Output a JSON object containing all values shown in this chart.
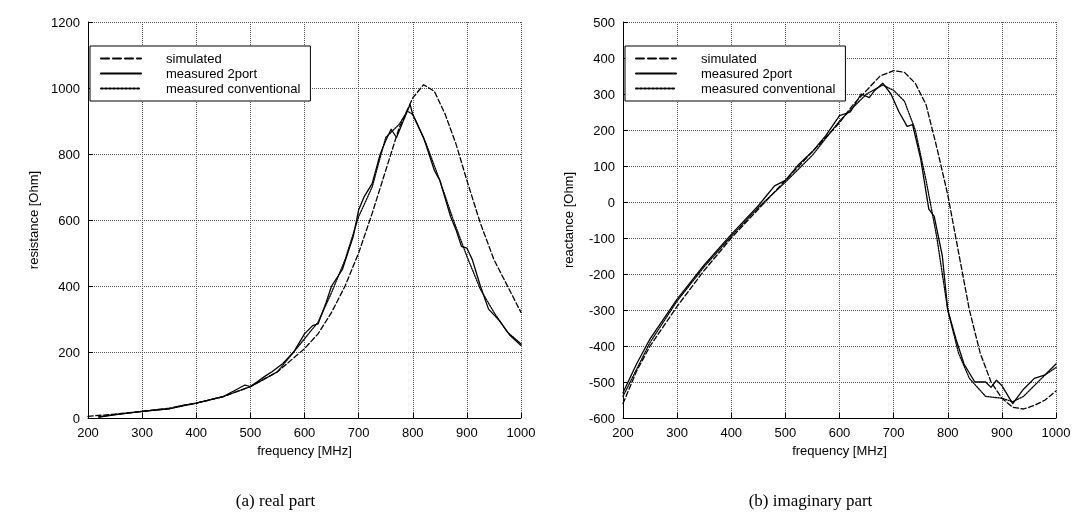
{
  "chart_data": [
    {
      "type": "line",
      "title": "(a) real part",
      "xlabel": "frequency [MHz]",
      "ylabel": "resistance [Ohm]",
      "xlim": [
        200,
        1000
      ],
      "xticks": [
        200,
        300,
        400,
        500,
        600,
        700,
        800,
        900,
        1000
      ],
      "ylim": [
        0,
        1200
      ],
      "yticks": [
        0,
        200,
        400,
        600,
        800,
        1000,
        1200
      ],
      "grid": true,
      "legend": "top left",
      "marker": "none",
      "series": [
        {
          "name": "simulated",
          "color": "#000000",
          "line_style": "dashed",
          "x": [
            200,
            250,
            300,
            350,
            400,
            450,
            500,
            550,
            600,
            625,
            650,
            675,
            700,
            725,
            750,
            775,
            800,
            820,
            840,
            860,
            880,
            900,
            925,
            950,
            975,
            1000
          ],
          "values": [
            5,
            12,
            20,
            30,
            45,
            65,
            95,
            140,
            210,
            255,
            320,
            400,
            500,
            620,
            750,
            880,
            970,
            1010,
            990,
            920,
            830,
            720,
            590,
            480,
            400,
            320
          ]
        },
        {
          "name": "measured 2port",
          "color": "#000000",
          "line_style": "solid",
          "x": [
            220,
            250,
            300,
            350,
            370,
            400,
            450,
            490,
            500,
            530,
            540,
            560,
            580,
            600,
            615,
            625,
            640,
            650,
            660,
            670,
            690,
            700,
            710,
            725,
            740,
            750,
            760,
            770,
            780,
            795,
            800,
            820,
            840,
            850,
            870,
            880,
            890,
            900,
            910,
            925,
            940,
            960,
            980,
            1000
          ],
          "values": [
            3,
            10,
            20,
            28,
            37,
            45,
            65,
            100,
            95,
            130,
            140,
            165,
            200,
            255,
            280,
            285,
            350,
            400,
            425,
            450,
            550,
            630,
            670,
            710,
            800,
            840,
            875,
            850,
            890,
            950,
            920,
            850,
            750,
            720,
            610,
            570,
            520,
            515,
            480,
            400,
            330,
            295,
            250,
            220
          ]
        },
        {
          "name": "measured conventional",
          "color": "#000000",
          "line_style": "dotted",
          "x": [
            220,
            250,
            300,
            350,
            400,
            450,
            500,
            550,
            600,
            625,
            650,
            675,
            700,
            725,
            750,
            775,
            790,
            800,
            825,
            850,
            875,
            900,
            925,
            950,
            975,
            1000
          ],
          "values": [
            3,
            10,
            20,
            28,
            45,
            65,
            95,
            140,
            240,
            290,
            380,
            480,
            610,
            700,
            850,
            890,
            930,
            920,
            830,
            720,
            600,
            490,
            390,
            320,
            260,
            225
          ]
        }
      ]
    },
    {
      "type": "line",
      "title": "(b) imaginary part",
      "xlabel": "frequency [MHz]",
      "ylabel": "reactance [Ohm]",
      "xlim": [
        200,
        1000
      ],
      "xticks": [
        200,
        300,
        400,
        500,
        600,
        700,
        800,
        900,
        1000
      ],
      "ylim": [
        -600,
        500
      ],
      "yticks": [
        -600,
        -500,
        -400,
        -300,
        -200,
        -100,
        0,
        100,
        200,
        300,
        400,
        500
      ],
      "grid": true,
      "legend": "top left",
      "marker": "none",
      "series": [
        {
          "name": "simulated",
          "color": "#000000",
          "line_style": "dashed",
          "x": [
            200,
            225,
            250,
            300,
            350,
            400,
            450,
            500,
            550,
            600,
            625,
            650,
            675,
            700,
            720,
            740,
            760,
            780,
            800,
            820,
            840,
            860,
            880,
            900,
            920,
            940,
            960,
            980,
            1000
          ],
          "values": [
            -560,
            -470,
            -400,
            -290,
            -190,
            -100,
            -20,
            60,
            140,
            220,
            270,
            310,
            350,
            365,
            360,
            330,
            270,
            150,
            20,
            -140,
            -300,
            -420,
            -500,
            -545,
            -570,
            -575,
            -565,
            -550,
            -525
          ]
        },
        {
          "name": "measured 2port",
          "color": "#000000",
          "line_style": "solid",
          "x": [
            200,
            225,
            250,
            300,
            350,
            400,
            450,
            480,
            500,
            525,
            550,
            575,
            600,
            620,
            640,
            655,
            665,
            680,
            695,
            710,
            725,
            735,
            750,
            765,
            775,
            790,
            800,
            815,
            830,
            850,
            870,
            880,
            890,
            900,
            920,
            940,
            960,
            980,
            1000
          ],
          "values": [
            -530,
            -450,
            -380,
            -270,
            -175,
            -90,
            -10,
            45,
            60,
            105,
            140,
            185,
            240,
            250,
            300,
            290,
            310,
            330,
            300,
            250,
            210,
            215,
            120,
            -20,
            -40,
            -150,
            -300,
            -380,
            -450,
            -500,
            -500,
            -515,
            -495,
            -510,
            -560,
            -520,
            -490,
            -480,
            -450
          ]
        },
        {
          "name": "measured conventional",
          "color": "#000000",
          "line_style": "dotted",
          "x": [
            200,
            250,
            300,
            350,
            400,
            450,
            500,
            550,
            600,
            650,
            680,
            700,
            720,
            740,
            760,
            780,
            800,
            820,
            840,
            870,
            900,
            920,
            940,
            960,
            980,
            1000
          ],
          "values": [
            -540,
            -390,
            -275,
            -180,
            -95,
            -15,
            55,
            130,
            225,
            300,
            325,
            310,
            280,
            200,
            60,
            -100,
            -300,
            -420,
            -490,
            -540,
            -545,
            -555,
            -540,
            -510,
            -480,
            -460
          ]
        }
      ]
    }
  ]
}
